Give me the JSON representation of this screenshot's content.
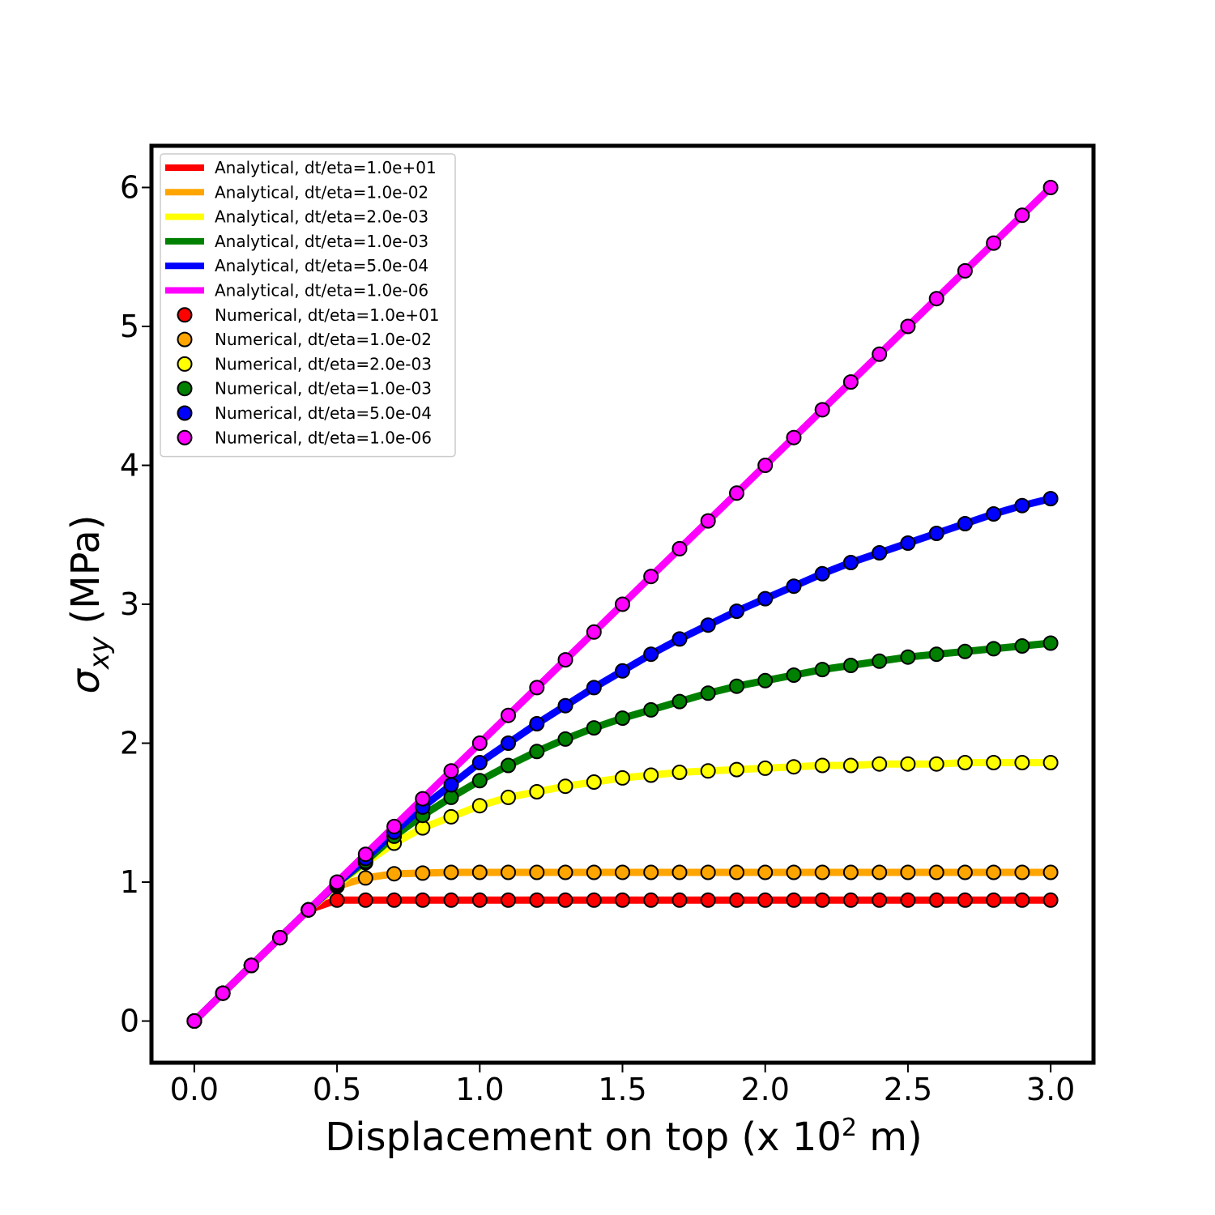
{
  "chart_data": {
    "type": "line",
    "xlabel": {
      "main": "Displacement on top (x 10",
      "sup": "2",
      "tail": " m)"
    },
    "ylabel": {
      "sym": "σ",
      "sub": "xy",
      "tail": " (MPa)"
    },
    "xlim": [
      -0.15,
      3.15
    ],
    "ylim": [
      -0.3,
      6.3
    ],
    "xticks": [
      0.0,
      0.5,
      1.0,
      1.5,
      2.0,
      2.5,
      3.0
    ],
    "xtick_labels": [
      "0.0",
      "0.5",
      "1.0",
      "1.5",
      "2.0",
      "2.5",
      "3.0"
    ],
    "yticks": [
      0,
      1,
      2,
      3,
      4,
      5,
      6
    ],
    "ytick_labels": [
      "0",
      "1",
      "2",
      "3",
      "4",
      "5",
      "6"
    ],
    "grid": false,
    "legend_position": "top-left",
    "x": [
      0.0,
      0.1,
      0.2,
      0.3,
      0.4,
      0.5,
      0.6,
      0.7,
      0.8,
      0.9,
      1.0,
      1.1,
      1.2,
      1.3,
      1.4,
      1.5,
      1.6,
      1.7,
      1.8,
      1.9,
      2.0,
      2.1,
      2.2,
      2.3,
      2.4,
      2.5,
      2.6,
      2.7,
      2.8,
      2.9,
      3.0
    ],
    "series": [
      {
        "name": "dt/eta=1.0e+01",
        "color": "#ff0000",
        "values": [
          0,
          0.2,
          0.4,
          0.6,
          0.8,
          0.87,
          0.87,
          0.87,
          0.87,
          0.87,
          0.87,
          0.87,
          0.87,
          0.87,
          0.87,
          0.87,
          0.87,
          0.87,
          0.87,
          0.87,
          0.87,
          0.87,
          0.87,
          0.87,
          0.87,
          0.87,
          0.87,
          0.87,
          0.87,
          0.87,
          0.87
        ]
      },
      {
        "name": "dt/eta=1.0e-02",
        "color": "#ffa500",
        "values": [
          0,
          0.2,
          0.4,
          0.6,
          0.8,
          0.97,
          1.03,
          1.06,
          1.065,
          1.07,
          1.07,
          1.07,
          1.07,
          1.07,
          1.07,
          1.07,
          1.07,
          1.07,
          1.07,
          1.07,
          1.07,
          1.07,
          1.07,
          1.07,
          1.07,
          1.07,
          1.07,
          1.07,
          1.07,
          1.07,
          1.07
        ]
      },
      {
        "name": "dt/eta=2.0e-03",
        "color": "#ffff00",
        "values": [
          0,
          0.2,
          0.4,
          0.6,
          0.8,
          0.98,
          1.14,
          1.28,
          1.39,
          1.47,
          1.55,
          1.61,
          1.65,
          1.69,
          1.72,
          1.75,
          1.77,
          1.79,
          1.8,
          1.81,
          1.82,
          1.83,
          1.84,
          1.84,
          1.85,
          1.85,
          1.85,
          1.86,
          1.86,
          1.86,
          1.86
        ]
      },
      {
        "name": "dt/eta=1.0e-03",
        "color": "#008000",
        "values": [
          0,
          0.2,
          0.4,
          0.6,
          0.8,
          0.99,
          1.15,
          1.33,
          1.48,
          1.61,
          1.73,
          1.84,
          1.94,
          2.03,
          2.11,
          2.18,
          2.24,
          2.3,
          2.36,
          2.41,
          2.45,
          2.49,
          2.53,
          2.56,
          2.59,
          2.62,
          2.64,
          2.66,
          2.68,
          2.7,
          2.72
        ]
      },
      {
        "name": "dt/eta=5.0e-04",
        "color": "#0000ff",
        "values": [
          0,
          0.2,
          0.4,
          0.6,
          0.8,
          0.99,
          1.17,
          1.36,
          1.54,
          1.7,
          1.86,
          2.0,
          2.14,
          2.27,
          2.4,
          2.52,
          2.64,
          2.75,
          2.85,
          2.95,
          3.04,
          3.13,
          3.22,
          3.3,
          3.37,
          3.44,
          3.51,
          3.58,
          3.65,
          3.71,
          3.76
        ]
      },
      {
        "name": "dt/eta=1.0e-06",
        "color": "#ff00ff",
        "values": [
          0,
          0.2,
          0.4,
          0.6,
          0.8,
          1.0,
          1.2,
          1.4,
          1.6,
          1.8,
          2.0,
          2.2,
          2.4,
          2.6,
          2.8,
          3.0,
          3.2,
          3.4,
          3.6,
          3.8,
          4.0,
          4.2,
          4.4,
          4.6,
          4.8,
          5.0,
          5.2,
          5.4,
          5.6,
          5.8,
          6.0
        ]
      }
    ],
    "legend_entries": [
      {
        "label": "Analytical, dt/eta=1.0e+01",
        "kind": "line",
        "color": "#ff0000"
      },
      {
        "label": "Analytical, dt/eta=1.0e-02",
        "kind": "line",
        "color": "#ffa500"
      },
      {
        "label": "Analytical, dt/eta=2.0e-03",
        "kind": "line",
        "color": "#ffff00"
      },
      {
        "label": "Analytical, dt/eta=1.0e-03",
        "kind": "line",
        "color": "#008000"
      },
      {
        "label": "Analytical, dt/eta=5.0e-04",
        "kind": "line",
        "color": "#0000ff"
      },
      {
        "label": "Analytical, dt/eta=1.0e-06",
        "kind": "line",
        "color": "#ff00ff"
      },
      {
        "label": "Numerical, dt/eta=1.0e+01",
        "kind": "marker",
        "color": "#ff0000"
      },
      {
        "label": "Numerical, dt/eta=1.0e-02",
        "kind": "marker",
        "color": "#ffa500"
      },
      {
        "label": "Numerical, dt/eta=2.0e-03",
        "kind": "marker",
        "color": "#ffff00"
      },
      {
        "label": "Numerical, dt/eta=1.0e-03",
        "kind": "marker",
        "color": "#008000"
      },
      {
        "label": "Numerical, dt/eta=5.0e-04",
        "kind": "marker",
        "color": "#0000ff"
      },
      {
        "label": "Numerical, dt/eta=1.0e-06",
        "kind": "marker",
        "color": "#ff00ff"
      }
    ]
  }
}
